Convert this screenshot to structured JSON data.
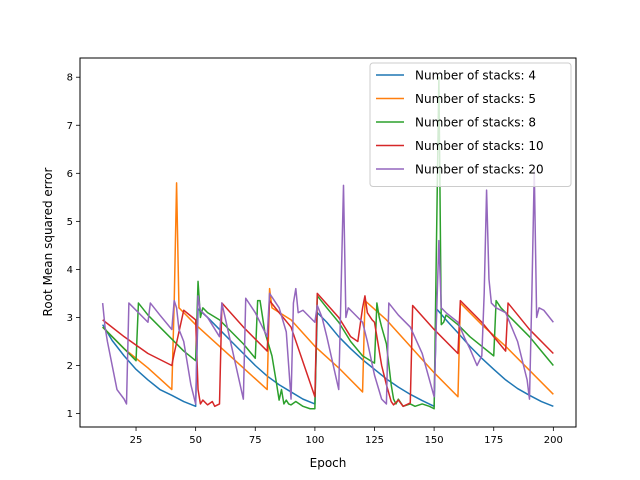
{
  "chart_data": {
    "type": "line",
    "xlabel": "Epoch",
    "ylabel": "Root Mean squared error",
    "xlim": [
      1.5,
      209.5
    ],
    "ylim": [
      0.72,
      8.4
    ],
    "xticks": [
      25,
      50,
      75,
      100,
      125,
      150,
      175,
      200
    ],
    "yticks": [
      1,
      2,
      3,
      4,
      5,
      6,
      7,
      8
    ],
    "grid": false,
    "legend_position": "top-right",
    "series": [
      {
        "name": "Number of stacks: 4",
        "color": "#1f77b4",
        "points": [
          [
            11,
            2.85
          ],
          [
            15,
            2.52
          ],
          [
            20,
            2.2
          ],
          [
            25,
            1.92
          ],
          [
            30,
            1.7
          ],
          [
            35,
            1.5
          ],
          [
            40,
            1.38
          ],
          [
            45,
            1.25
          ],
          [
            50,
            1.15
          ],
          [
            51,
            3.18
          ],
          [
            55,
            3.0
          ],
          [
            60,
            2.75
          ],
          [
            65,
            2.5
          ],
          [
            70,
            2.25
          ],
          [
            75,
            2.0
          ],
          [
            80,
            1.78
          ],
          [
            85,
            1.6
          ],
          [
            90,
            1.45
          ],
          [
            95,
            1.3
          ],
          [
            100,
            1.2
          ],
          [
            101,
            3.1
          ],
          [
            105,
            2.9
          ],
          [
            110,
            2.6
          ],
          [
            115,
            2.35
          ],
          [
            120,
            2.12
          ],
          [
            125,
            1.92
          ],
          [
            130,
            1.72
          ],
          [
            135,
            1.55
          ],
          [
            140,
            1.4
          ],
          [
            145,
            1.27
          ],
          [
            150,
            1.15
          ],
          [
            151,
            3.18
          ],
          [
            155,
            2.95
          ],
          [
            160,
            2.68
          ],
          [
            165,
            2.4
          ],
          [
            170,
            2.15
          ],
          [
            175,
            1.92
          ],
          [
            180,
            1.7
          ],
          [
            185,
            1.52
          ],
          [
            190,
            1.38
          ],
          [
            195,
            1.25
          ],
          [
            200,
            1.15
          ]
        ]
      },
      {
        "name": "Number of stacks: 5",
        "color": "#ff7f0e",
        "points": [
          [
            11,
            2.8
          ],
          [
            20,
            2.35
          ],
          [
            30,
            1.95
          ],
          [
            40,
            1.5
          ],
          [
            41,
            3.3
          ],
          [
            42,
            5.8
          ],
          [
            43,
            3.2
          ],
          [
            45,
            3.1
          ],
          [
            50,
            2.85
          ],
          [
            60,
            2.4
          ],
          [
            70,
            1.95
          ],
          [
            80,
            1.5
          ],
          [
            81,
            3.6
          ],
          [
            82,
            3.2
          ],
          [
            90,
            2.95
          ],
          [
            100,
            2.4
          ],
          [
            110,
            1.95
          ],
          [
            120,
            1.45
          ],
          [
            121,
            3.35
          ],
          [
            130,
            2.95
          ],
          [
            140,
            2.4
          ],
          [
            150,
            1.85
          ],
          [
            160,
            1.35
          ],
          [
            161,
            3.3
          ],
          [
            170,
            2.85
          ],
          [
            180,
            2.4
          ],
          [
            190,
            1.9
          ],
          [
            200,
            1.4
          ]
        ]
      },
      {
        "name": "Number of stacks: 8",
        "color": "#2ca02c",
        "points": [
          [
            11,
            2.8
          ],
          [
            15,
            2.6
          ],
          [
            20,
            2.35
          ],
          [
            25,
            2.1
          ],
          [
            26,
            3.3
          ],
          [
            30,
            3.05
          ],
          [
            35,
            2.8
          ],
          [
            40,
            2.55
          ],
          [
            45,
            2.3
          ],
          [
            50,
            2.1
          ],
          [
            51,
            3.75
          ],
          [
            52,
            3.0
          ],
          [
            53,
            3.2
          ],
          [
            55,
            3.1
          ],
          [
            60,
            2.95
          ],
          [
            65,
            2.7
          ],
          [
            70,
            2.45
          ],
          [
            75,
            2.15
          ],
          [
            76,
            3.35
          ],
          [
            77,
            3.35
          ],
          [
            79,
            2.7
          ],
          [
            82,
            2.2
          ],
          [
            84,
            1.6
          ],
          [
            85,
            1.28
          ],
          [
            86,
            1.5
          ],
          [
            87,
            1.2
          ],
          [
            88,
            1.28
          ],
          [
            89,
            1.2
          ],
          [
            90,
            1.18
          ],
          [
            92,
            1.25
          ],
          [
            95,
            1.15
          ],
          [
            98,
            1.1
          ],
          [
            100,
            1.1
          ],
          [
            101,
            3.45
          ],
          [
            105,
            3.2
          ],
          [
            110,
            2.9
          ],
          [
            115,
            2.5
          ],
          [
            120,
            2.2
          ],
          [
            125,
            2.05
          ],
          [
            126,
            3.3
          ],
          [
            127,
            3.0
          ],
          [
            128,
            2.8
          ],
          [
            130,
            2.45
          ],
          [
            132,
            1.6
          ],
          [
            133,
            1.3
          ],
          [
            134,
            1.2
          ],
          [
            135,
            1.3
          ],
          [
            137,
            1.15
          ],
          [
            140,
            1.2
          ],
          [
            142,
            1.15
          ],
          [
            145,
            1.2
          ],
          [
            148,
            1.15
          ],
          [
            150,
            1.1
          ],
          [
            151,
            4.6
          ],
          [
            152,
            8.0
          ],
          [
            153,
            2.85
          ],
          [
            154,
            2.9
          ],
          [
            155,
            3.05
          ],
          [
            160,
            2.85
          ],
          [
            165,
            2.6
          ],
          [
            170,
            2.4
          ],
          [
            175,
            2.2
          ],
          [
            176,
            3.35
          ],
          [
            178,
            3.2
          ],
          [
            180,
            3.1
          ],
          [
            185,
            2.85
          ],
          [
            190,
            2.6
          ],
          [
            195,
            2.3
          ],
          [
            200,
            2.0
          ]
        ]
      },
      {
        "name": "Number of stacks: 10",
        "color": "#d62728",
        "points": [
          [
            11,
            2.95
          ],
          [
            20,
            2.6
          ],
          [
            30,
            2.25
          ],
          [
            40,
            2.0
          ],
          [
            41,
            2.25
          ],
          [
            45,
            3.15
          ],
          [
            50,
            2.95
          ],
          [
            51,
            1.5
          ],
          [
            52,
            1.2
          ],
          [
            53,
            1.28
          ],
          [
            55,
            1.18
          ],
          [
            57,
            1.25
          ],
          [
            58,
            1.15
          ],
          [
            60,
            1.2
          ],
          [
            61,
            3.3
          ],
          [
            70,
            2.8
          ],
          [
            80,
            2.3
          ],
          [
            81,
            3.35
          ],
          [
            85,
            3.1
          ],
          [
            90,
            2.8
          ],
          [
            100,
            1.35
          ],
          [
            101,
            3.5
          ],
          [
            110,
            3.0
          ],
          [
            115,
            2.6
          ],
          [
            118,
            2.5
          ],
          [
            120,
            3.2
          ],
          [
            121,
            3.45
          ],
          [
            122,
            3.1
          ],
          [
            124,
            2.95
          ],
          [
            125,
            2.9
          ],
          [
            128,
            2.0
          ],
          [
            130,
            1.6
          ],
          [
            132,
            1.25
          ],
          [
            133,
            1.18
          ],
          [
            135,
            1.28
          ],
          [
            137,
            1.15
          ],
          [
            140,
            1.22
          ],
          [
            141,
            3.25
          ],
          [
            150,
            2.75
          ],
          [
            160,
            2.25
          ],
          [
            161,
            3.35
          ],
          [
            170,
            2.9
          ],
          [
            180,
            2.3
          ],
          [
            181,
            3.3
          ],
          [
            190,
            2.75
          ],
          [
            200,
            2.25
          ]
        ]
      },
      {
        "name": "Number of stacks: 20",
        "color": "#9467bd",
        "points": [
          [
            11,
            3.3
          ],
          [
            12,
            2.8
          ],
          [
            13,
            2.5
          ],
          [
            15,
            2.0
          ],
          [
            17,
            1.5
          ],
          [
            20,
            1.3
          ],
          [
            21,
            1.2
          ],
          [
            22,
            3.3
          ],
          [
            30,
            2.9
          ],
          [
            31,
            3.3
          ],
          [
            35,
            3.05
          ],
          [
            40,
            2.75
          ],
          [
            41,
            3.35
          ],
          [
            42,
            3.2
          ],
          [
            43,
            2.75
          ],
          [
            45,
            2.5
          ],
          [
            48,
            1.6
          ],
          [
            50,
            1.2
          ],
          [
            51,
            3.45
          ],
          [
            52,
            3.15
          ],
          [
            55,
            3.0
          ],
          [
            60,
            2.6
          ],
          [
            61,
            3.3
          ],
          [
            70,
            1.3
          ],
          [
            71,
            3.4
          ],
          [
            75,
            3.1
          ],
          [
            80,
            2.6
          ],
          [
            81,
            3.5
          ],
          [
            85,
            3.2
          ],
          [
            88,
            2.7
          ],
          [
            90,
            1.3
          ],
          [
            91,
            3.3
          ],
          [
            92,
            3.6
          ],
          [
            93,
            3.1
          ],
          [
            95,
            3.15
          ],
          [
            100,
            2.9
          ],
          [
            101,
            3.25
          ],
          [
            103,
            3.0
          ],
          [
            105,
            2.6
          ],
          [
            110,
            1.5
          ],
          [
            112,
            5.75
          ],
          [
            113,
            3.0
          ],
          [
            114,
            3.2
          ],
          [
            116,
            3.1
          ],
          [
            120,
            2.9
          ],
          [
            122,
            2.5
          ],
          [
            125,
            1.8
          ],
          [
            128,
            1.3
          ],
          [
            130,
            1.2
          ],
          [
            131,
            3.3
          ],
          [
            135,
            3.05
          ],
          [
            140,
            2.8
          ],
          [
            145,
            2.25
          ],
          [
            150,
            1.35
          ],
          [
            151,
            3.0
          ],
          [
            152,
            4.6
          ],
          [
            153,
            3.2
          ],
          [
            155,
            3.1
          ],
          [
            160,
            2.9
          ],
          [
            163,
            2.55
          ],
          [
            165,
            2.35
          ],
          [
            168,
            2.0
          ],
          [
            170,
            2.2
          ],
          [
            171,
            3.5
          ],
          [
            172,
            5.65
          ],
          [
            173,
            3.8
          ],
          [
            174,
            3.3
          ],
          [
            176,
            3.2
          ],
          [
            180,
            3.1
          ],
          [
            185,
            2.5
          ],
          [
            189,
            1.7
          ],
          [
            190,
            1.3
          ],
          [
            191,
            3.5
          ],
          [
            192,
            6.05
          ],
          [
            193,
            3.0
          ],
          [
            194,
            3.2
          ],
          [
            196,
            3.15
          ],
          [
            200,
            2.9
          ]
        ]
      }
    ]
  }
}
